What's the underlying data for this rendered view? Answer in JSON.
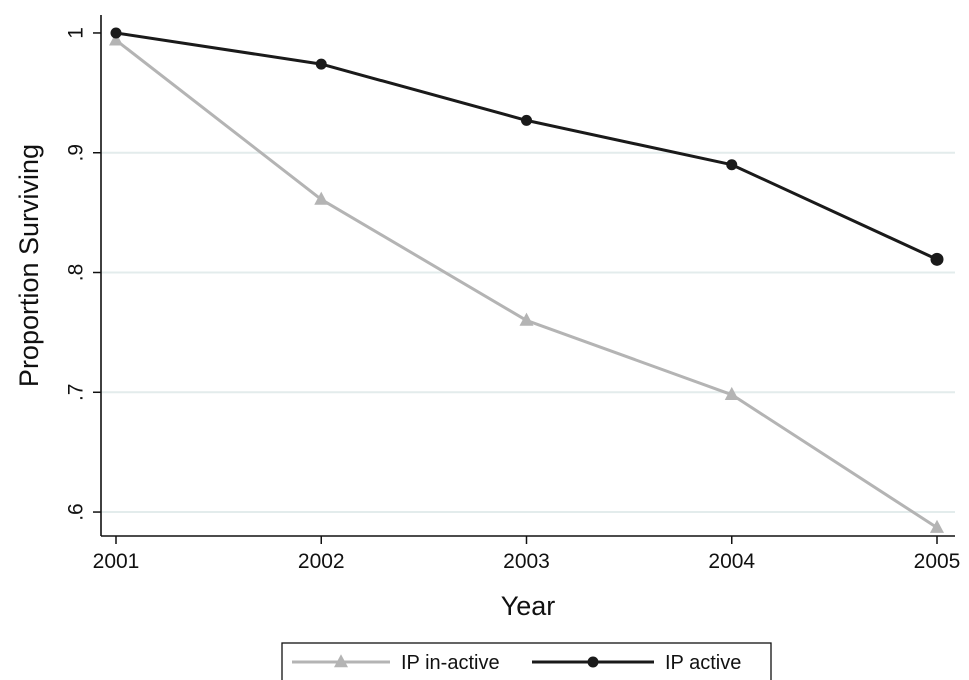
{
  "chart_data": {
    "type": "line",
    "title": "",
    "xlabel": "Year",
    "ylabel": "Proportion Surviving",
    "x": [
      2001,
      2002,
      2003,
      2004,
      2005
    ],
    "x_tick_labels": [
      "2001",
      "2002",
      "2003",
      "2004",
      "2005"
    ],
    "y_ticks": [
      0.6,
      0.7,
      0.8,
      0.9,
      1.0
    ],
    "y_tick_labels": [
      ".6",
      ".7",
      ".8",
      ".9",
      "1"
    ],
    "ylim": [
      0.58,
      1.015
    ],
    "xlim": [
      2001,
      2005
    ],
    "grid": "horizontal",
    "legend_position": "bottom",
    "series": [
      {
        "name": "IP in-active",
        "values": [
          0.994,
          0.861,
          0.76,
          0.698,
          0.587
        ],
        "color": "#b4b4b4",
        "marker": "triangle"
      },
      {
        "name": "IP active",
        "values": [
          1.0,
          0.974,
          0.927,
          0.89,
          0.811
        ],
        "color": "#1a1a1a",
        "marker": "circle"
      }
    ],
    "colors": {
      "grid": "#e3ecec",
      "axis": "#111111"
    }
  }
}
